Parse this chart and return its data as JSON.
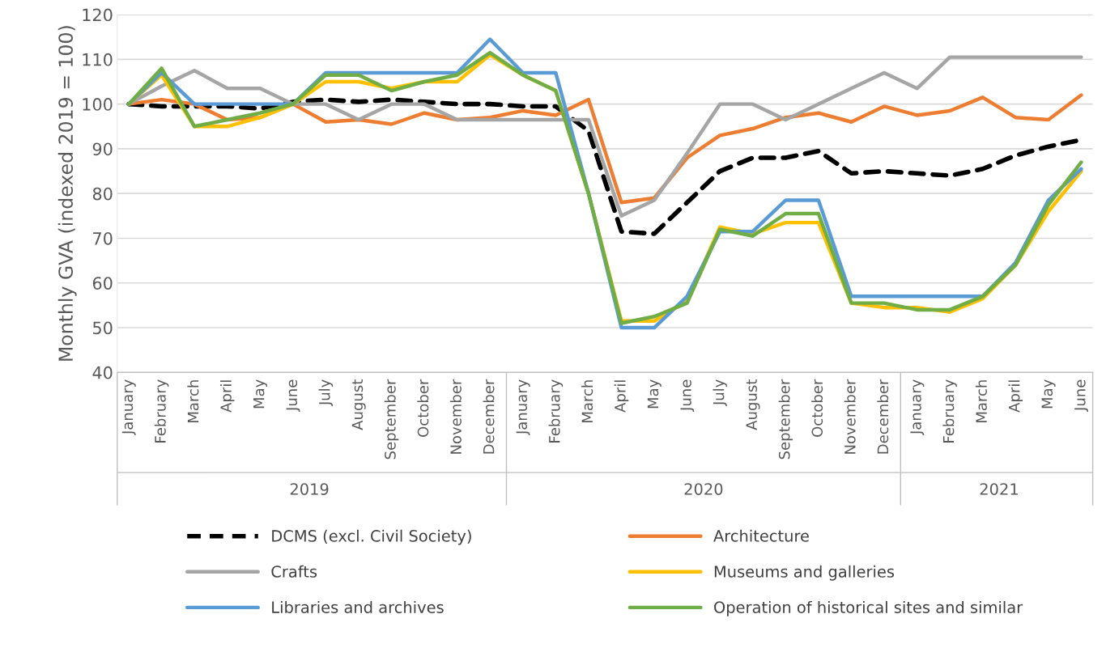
{
  "chart_data": {
    "type": "line",
    "ylabel": "Monthly GVA (indexed 2019 = 100)",
    "categories": [
      "January",
      "February",
      "March",
      "April",
      "May",
      "June",
      "July",
      "August",
      "September",
      "October",
      "November",
      "December",
      "January",
      "February",
      "March",
      "April",
      "May",
      "June",
      "July",
      "August",
      "September",
      "October",
      "November",
      "December",
      "January",
      "February",
      "March",
      "April",
      "May",
      "June"
    ],
    "annotations": [
      "2019",
      "2020",
      "2021"
    ],
    "ylim": [
      40,
      120
    ],
    "yticks": [
      40,
      50,
      60,
      70,
      80,
      90,
      100,
      110,
      120
    ],
    "grid": "y",
    "legend": "bottom",
    "marker": "none",
    "series": [
      {
        "name": "DCMS (excl. Civil Society)",
        "color": "#000000",
        "line_style": "dashed",
        "values": [
          100,
          99.5,
          99.5,
          99.5,
          99,
          100.5,
          101,
          100.5,
          101,
          100.5,
          100,
          100,
          99.5,
          99.5,
          94,
          71.5,
          71,
          78,
          85,
          88,
          88,
          89.5,
          84.5,
          85,
          84.5,
          84,
          85.5,
          88.5,
          90.5,
          92
        ]
      },
      {
        "name": "Architecture",
        "color": "#ed7d31",
        "line_style": "solid",
        "values": [
          100,
          101,
          100,
          96.5,
          97,
          100,
          96,
          96.5,
          95.5,
          98,
          96.5,
          97,
          98.5,
          97.5,
          101,
          78,
          79,
          88,
          93,
          94.5,
          97,
          98,
          96,
          99.5,
          97.5,
          98.5,
          101.5,
          97,
          96.5,
          102
        ]
      },
      {
        "name": "Crafts",
        "color": "#a5a5a5",
        "line_style": "solid",
        "values": [
          100,
          104,
          107.5,
          103.5,
          103.5,
          100,
          100,
          96.5,
          100,
          100,
          96.5,
          96.5,
          96.5,
          96.5,
          96.5,
          75,
          78.5,
          89,
          100,
          100,
          96.5,
          100,
          103.5,
          107,
          103.5,
          110.5,
          110.5,
          110.5,
          110.5,
          110.5
        ]
      },
      {
        "name": "Museums and galleries",
        "color": "#ffc000",
        "line_style": "solid",
        "values": [
          100,
          106.5,
          95,
          95,
          97,
          100,
          105,
          105,
          103.5,
          105,
          105,
          111,
          106.5,
          103,
          80,
          51.5,
          51.5,
          56,
          72.5,
          71,
          73.5,
          73.5,
          55.5,
          54.5,
          54.5,
          53.5,
          56.5,
          64,
          76,
          85
        ]
      },
      {
        "name": "Libraries and archives",
        "color": "#5b9bd5",
        "line_style": "solid",
        "values": [
          100,
          107,
          100,
          100,
          100,
          100,
          107,
          107,
          107,
          107,
          107,
          114.5,
          107,
          107,
          80,
          50,
          50,
          57,
          71.5,
          71.5,
          78.5,
          78.5,
          57,
          57,
          57,
          57,
          57,
          64.5,
          78.5,
          85.5
        ]
      },
      {
        "name": "Operation of historical sites and similar",
        "color": "#70ad47",
        "line_style": "solid",
        "values": [
          100,
          108,
          95,
          96.5,
          98,
          100,
          106.5,
          106.5,
          103,
          105,
          106.5,
          111.5,
          106.5,
          103,
          80,
          51,
          52.5,
          55.5,
          72,
          70.5,
          75.5,
          75.5,
          55.5,
          55.5,
          54,
          54,
          57,
          64,
          77.5,
          87
        ]
      }
    ]
  }
}
